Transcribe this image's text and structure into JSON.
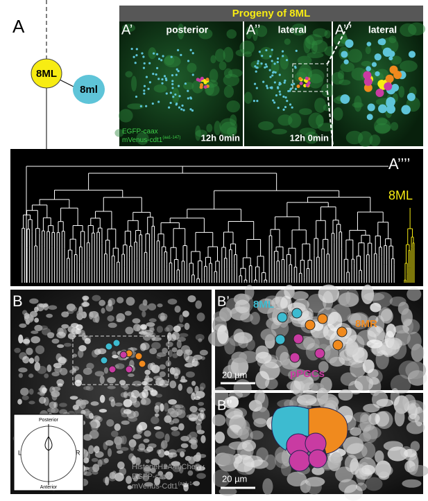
{
  "panel_a": {
    "label": "A",
    "parent_cell": "8ML",
    "daughter_cell": "8ml",
    "title": "Progeny of 8ML",
    "views": [
      {
        "label": "A’",
        "caption": "posterior",
        "time": "12h 0min"
      },
      {
        "label": "A’’",
        "caption": "lateral",
        "time": "12h 0min"
      },
      {
        "label": "A’’’",
        "caption": "lateral"
      }
    ],
    "markers": [
      "EGFP-caax",
      "mVenus-cdt1"
    ],
    "marker_superscript": "(aa1-147)"
  },
  "panel_a4": {
    "label": "A’’’’",
    "lineage": "8ML"
  },
  "panel_b": {
    "label": "B",
    "orientation": {
      "top": "Posterior",
      "bottom": "Anterior",
      "left": "L",
      "right": "R"
    },
    "markers": [
      "HistoneH2A-mCherry",
      "EGFP-caax",
      "mVenus-Cdt1"
    ],
    "marker_superscript": "(aa1-147)"
  },
  "panel_b1": {
    "label": "B’",
    "cells": [
      "8ML",
      "8MR",
      "pPGCs"
    ],
    "scale": "20 µm"
  },
  "panel_b2": {
    "label": "B’’",
    "scale": "20 µm"
  }
}
